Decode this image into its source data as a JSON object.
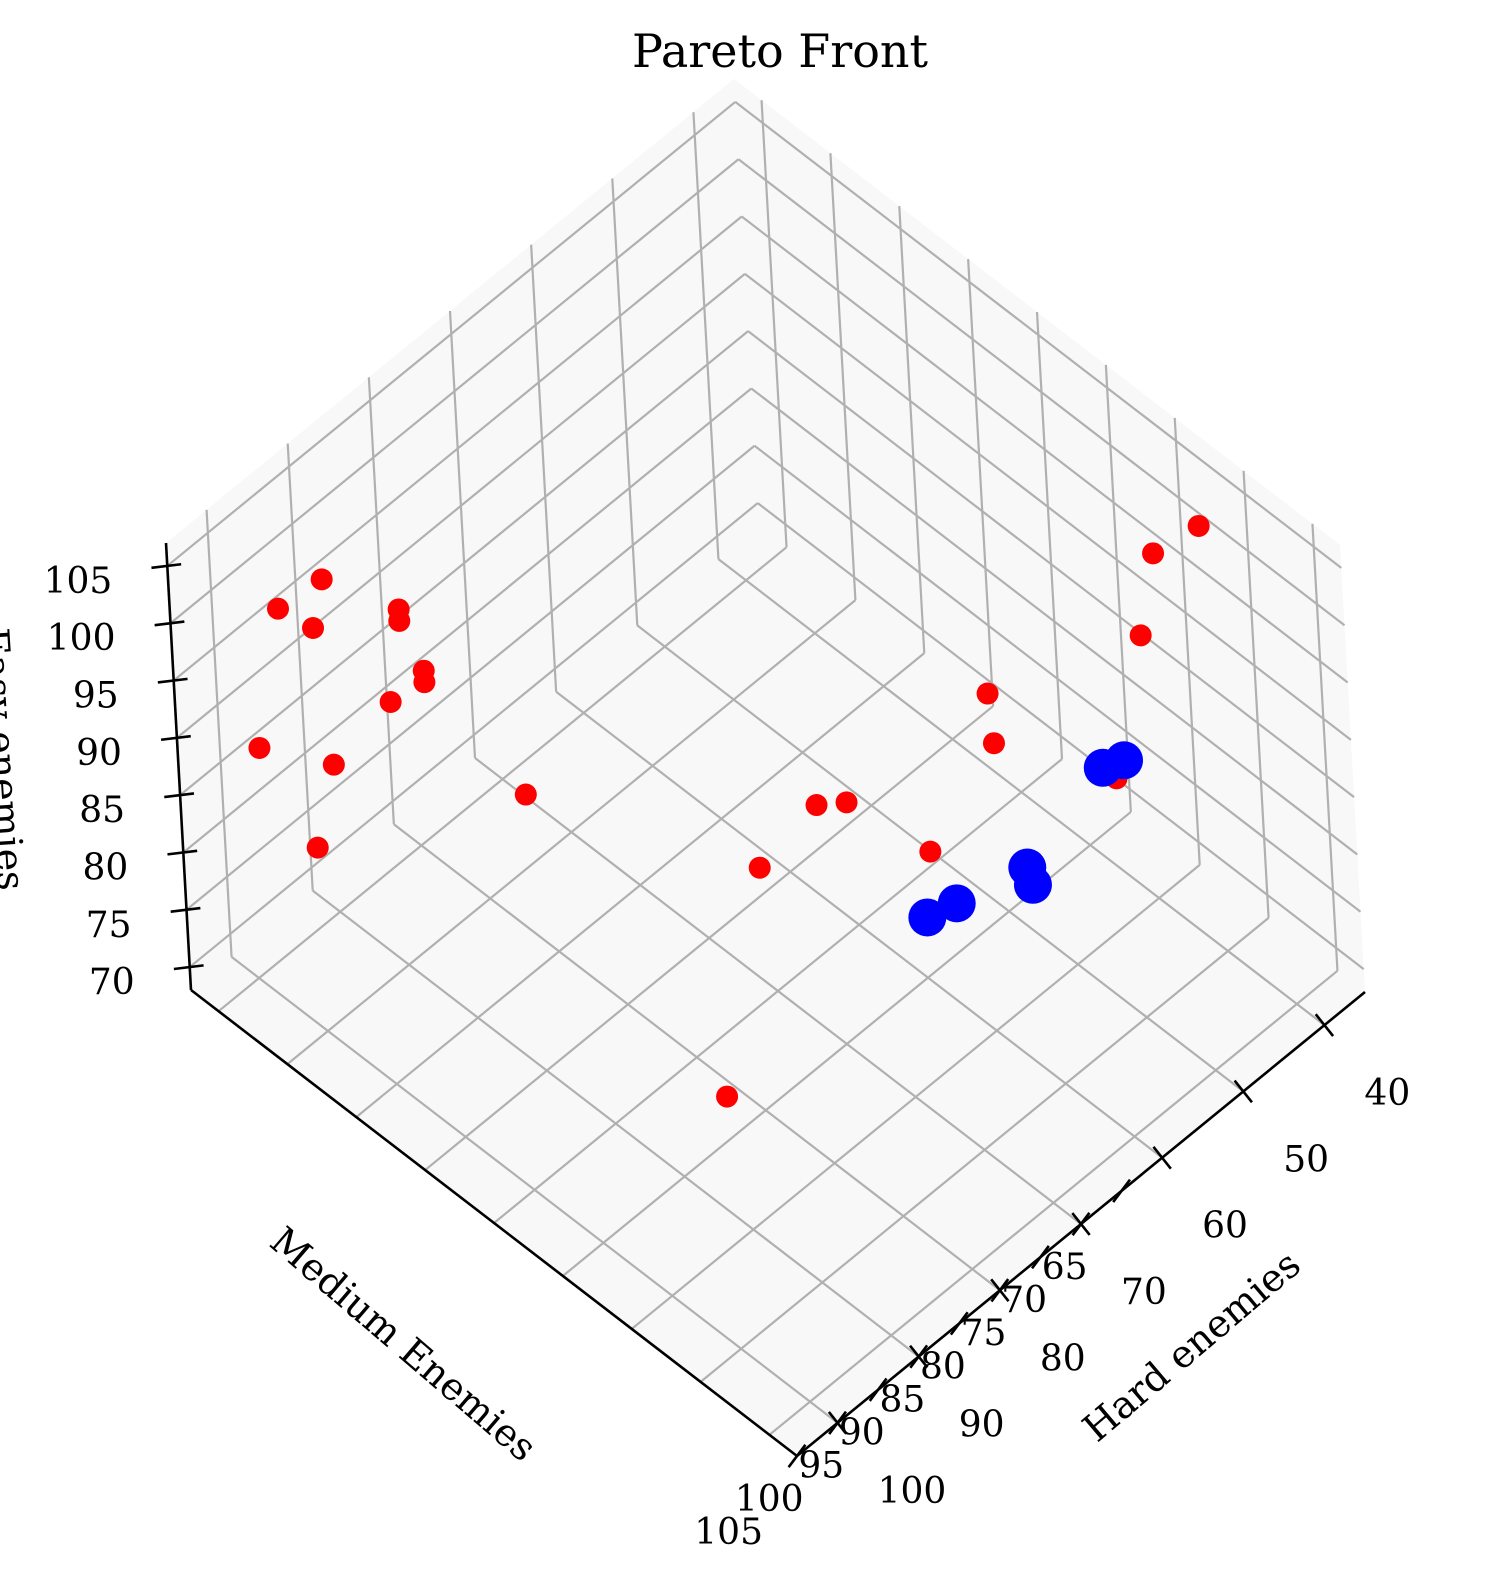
{
  "colors": {
    "background": "#ffffff",
    "pane": "#f2f2f2",
    "grid": "#b0b0b0",
    "axis": "#000000",
    "dominated": "#ff0000",
    "pareto": "#0000ff"
  },
  "chart_data": {
    "type": "scatter",
    "projection": "3d",
    "title": "Pareto Front",
    "xlabel": "Hard enemies",
    "ylabel": "Medium Enemies",
    "zlabel": "Easy enemies",
    "grid": true,
    "legend": "none",
    "xlim": [
      35,
      105
    ],
    "ylim": [
      63,
      107
    ],
    "zlim": [
      68,
      107
    ],
    "x_ticks": [
      40,
      50,
      60,
      70,
      80,
      90,
      100
    ],
    "y_ticks": [
      65,
      70,
      75,
      80,
      85,
      90,
      95,
      100,
      105
    ],
    "z_ticks": [
      70,
      75,
      80,
      85,
      90,
      95,
      100,
      105
    ],
    "x_tick_labels": [
      "40",
      "50",
      "60",
      "70",
      "80",
      "90",
      "100"
    ],
    "y_tick_labels": [
      "65",
      "70",
      "75",
      "80",
      "85",
      "90",
      "95",
      "100",
      "105"
    ],
    "z_tick_labels": [
      "70",
      "75",
      "80",
      "85",
      "90",
      "95",
      "100",
      "105"
    ],
    "series": [
      {
        "color": "#ff0000",
        "marker_size": "small",
        "points": [
          [
            90,
            65,
            97
          ],
          [
            100,
            68,
            103
          ],
          [
            96,
            68,
            99
          ],
          [
            92,
            72,
            101
          ],
          [
            92,
            72,
            102
          ],
          [
            100,
            66,
            89
          ],
          [
            96,
            69,
            88
          ],
          [
            92,
            71,
            93
          ],
          [
            91,
            73,
            96
          ],
          [
            91,
            73,
            97
          ],
          [
            100,
            70,
            84
          ],
          [
            100,
            100,
            90
          ],
          [
            86,
            77,
            87
          ],
          [
            76,
            88,
            85
          ],
          [
            62,
            92,
            82
          ],
          [
            60,
            96,
            94
          ],
          [
            72,
            90,
            90
          ],
          [
            70,
            91,
            90
          ],
          [
            48,
            88,
            84
          ],
          [
            51,
            99,
            90
          ],
          [
            52,
            100,
            90
          ],
          [
            42,
            96,
            93
          ],
          [
            40,
            96,
            99
          ],
          [
            36,
            97,
            100
          ]
        ]
      },
      {
        "color": "#0000ff",
        "marker_size": "large",
        "points": [
          [
            52,
            99,
            90
          ],
          [
            51,
            100,
            91
          ],
          [
            60,
            98,
            85
          ],
          [
            61,
            99,
            85
          ],
          [
            67,
            97,
            85
          ],
          [
            69,
            96,
            84
          ]
        ]
      }
    ]
  }
}
